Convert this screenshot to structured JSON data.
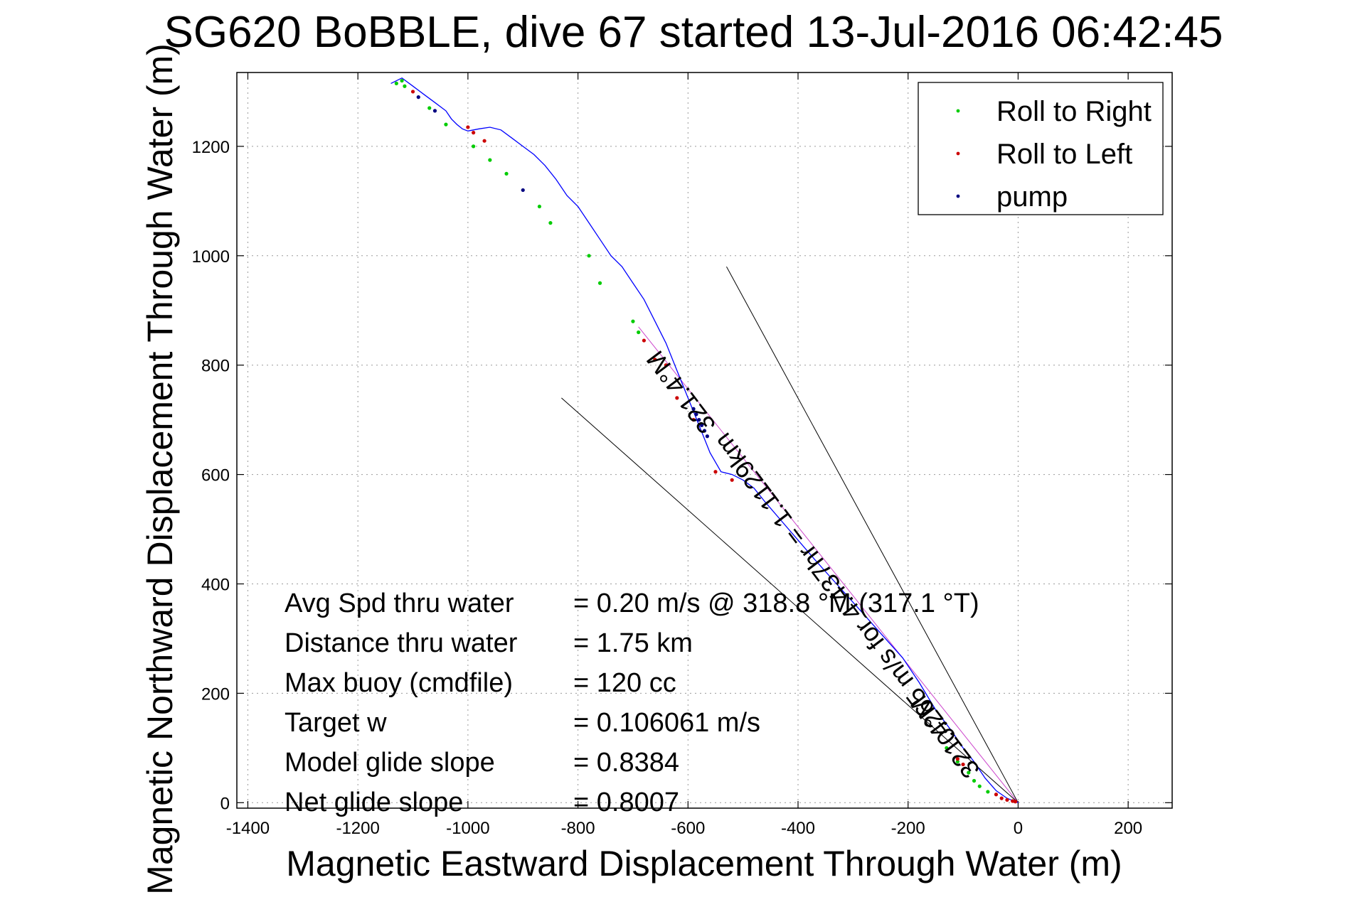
{
  "chart_data": {
    "type": "line",
    "title": "SG620 BoBBLE, dive 67 started 13-Jul-2016 06:42:45",
    "xlabel": "Magnetic Eastward Displacement Through Water (m)",
    "ylabel": "Magnetic Northward Displacement Through Water (m)",
    "xlim": [
      -1420,
      280
    ],
    "ylim": [
      -10,
      1335
    ],
    "xticks": [
      -1400,
      -1200,
      -1000,
      -800,
      -600,
      -400,
      -200,
      0,
      200
    ],
    "yticks": [
      0,
      200,
      400,
      600,
      800,
      1000,
      1200
    ],
    "grid": true,
    "legend_position": "top-right",
    "legend": [
      {
        "label": "Roll to Right",
        "color": "#00cc00"
      },
      {
        "label": "Roll to Left",
        "color": "#cc0000"
      },
      {
        "label": "pump",
        "color": "#000080"
      }
    ],
    "track": {
      "name": "track",
      "color": "#0000ff",
      "x": [
        0,
        -20,
        -40,
        -60,
        -80,
        -100,
        -120,
        -150,
        -180,
        -210,
        -250,
        -290,
        -330,
        -370,
        -400,
        -430,
        -460,
        -480,
        -500,
        -520,
        -540,
        -560,
        -580,
        -600,
        -620,
        -640,
        -660,
        -680,
        -700,
        -720,
        -740,
        -760,
        -780,
        -800,
        -820,
        -840,
        -860,
        -880,
        -900,
        -920,
        -940,
        -960,
        -980,
        -1000,
        -1010,
        -1020,
        -1030,
        -1040,
        -1060,
        -1080,
        -1100,
        -1120,
        -1140
      ],
      "y": [
        0,
        8,
        22,
        45,
        75,
        100,
        130,
        170,
        220,
        265,
        310,
        355,
        400,
        445,
        480,
        515,
        550,
        575,
        590,
        600,
        605,
        640,
        690,
        740,
        790,
        840,
        880,
        920,
        950,
        980,
        1000,
        1030,
        1060,
        1090,
        1110,
        1140,
        1165,
        1185,
        1200,
        1215,
        1230,
        1235,
        1232,
        1228,
        1232,
        1240,
        1250,
        1265,
        1280,
        1295,
        1310,
        1325,
        1315
      ]
    },
    "current_line": {
      "name": "current",
      "color": "#cc44cc",
      "x": [
        0,
        -690
      ],
      "y": [
        0,
        870
      ]
    },
    "wedge_lines": {
      "color": "#000000",
      "x_upper": [
        0,
        -530
      ],
      "y_upper": [
        0,
        980
      ],
      "x_lower": [
        0,
        -830
      ],
      "y_lower": [
        0,
        740
      ]
    },
    "roll_right_points": {
      "x": [
        -1130,
        -1120,
        -1115,
        -1070,
        -1040,
        -990,
        -960,
        -930,
        -870,
        -850,
        -780,
        -760,
        -700,
        -690,
        -660,
        -80,
        -70,
        -55,
        -90,
        -110,
        -130
      ],
      "y": [
        1315,
        1320,
        1310,
        1270,
        1240,
        1200,
        1175,
        1150,
        1090,
        1060,
        1000,
        950,
        880,
        860,
        810,
        40,
        30,
        20,
        55,
        75,
        100
      ]
    },
    "roll_left_points": {
      "x": [
        -1100,
        -1000,
        -990,
        -970,
        -680,
        -660,
        -640,
        -620,
        -590,
        -550,
        -520,
        -40,
        -30,
        -20,
        -10,
        -5,
        -110,
        -100
      ],
      "y": [
        1300,
        1235,
        1225,
        1210,
        845,
        810,
        800,
        740,
        700,
        605,
        590,
        15,
        8,
        5,
        3,
        2,
        80,
        70
      ]
    },
    "pump_points": {
      "x": [
        -1090,
        -1060,
        -900,
        -590,
        -585,
        -580,
        -575,
        -570,
        -565
      ],
      "y": [
        1290,
        1265,
        1120,
        720,
        710,
        700,
        690,
        680,
        670
      ]
    },
    "annotations": [
      {
        "text": "321.4°M",
        "x": -600,
        "y": 760,
        "rotation": 53
      },
      {
        "text": "0.265 m/s for 4.437hr = 1.1129km",
        "x": -320,
        "y": 400,
        "rotation": 53
      },
      {
        "text": "321.4°M",
        "x": -120,
        "y": 130,
        "rotation": 53
      }
    ],
    "stats": [
      {
        "label": "Avg Spd thru water",
        "value": "=  0.20 m/s @ 318.8 °M (317.1 °T)"
      },
      {
        "label": "Distance thru water",
        "value": "=  1.75 km"
      },
      {
        "label": "Max buoy (cmdfile)",
        "value": "= 120 cc"
      },
      {
        "label": "Target w",
        "value": "= 0.106061 m/s"
      },
      {
        "label": "Model glide slope",
        "value": "= 0.8384"
      },
      {
        "label": "Net glide slope",
        "value": "= 0.8007"
      }
    ]
  }
}
